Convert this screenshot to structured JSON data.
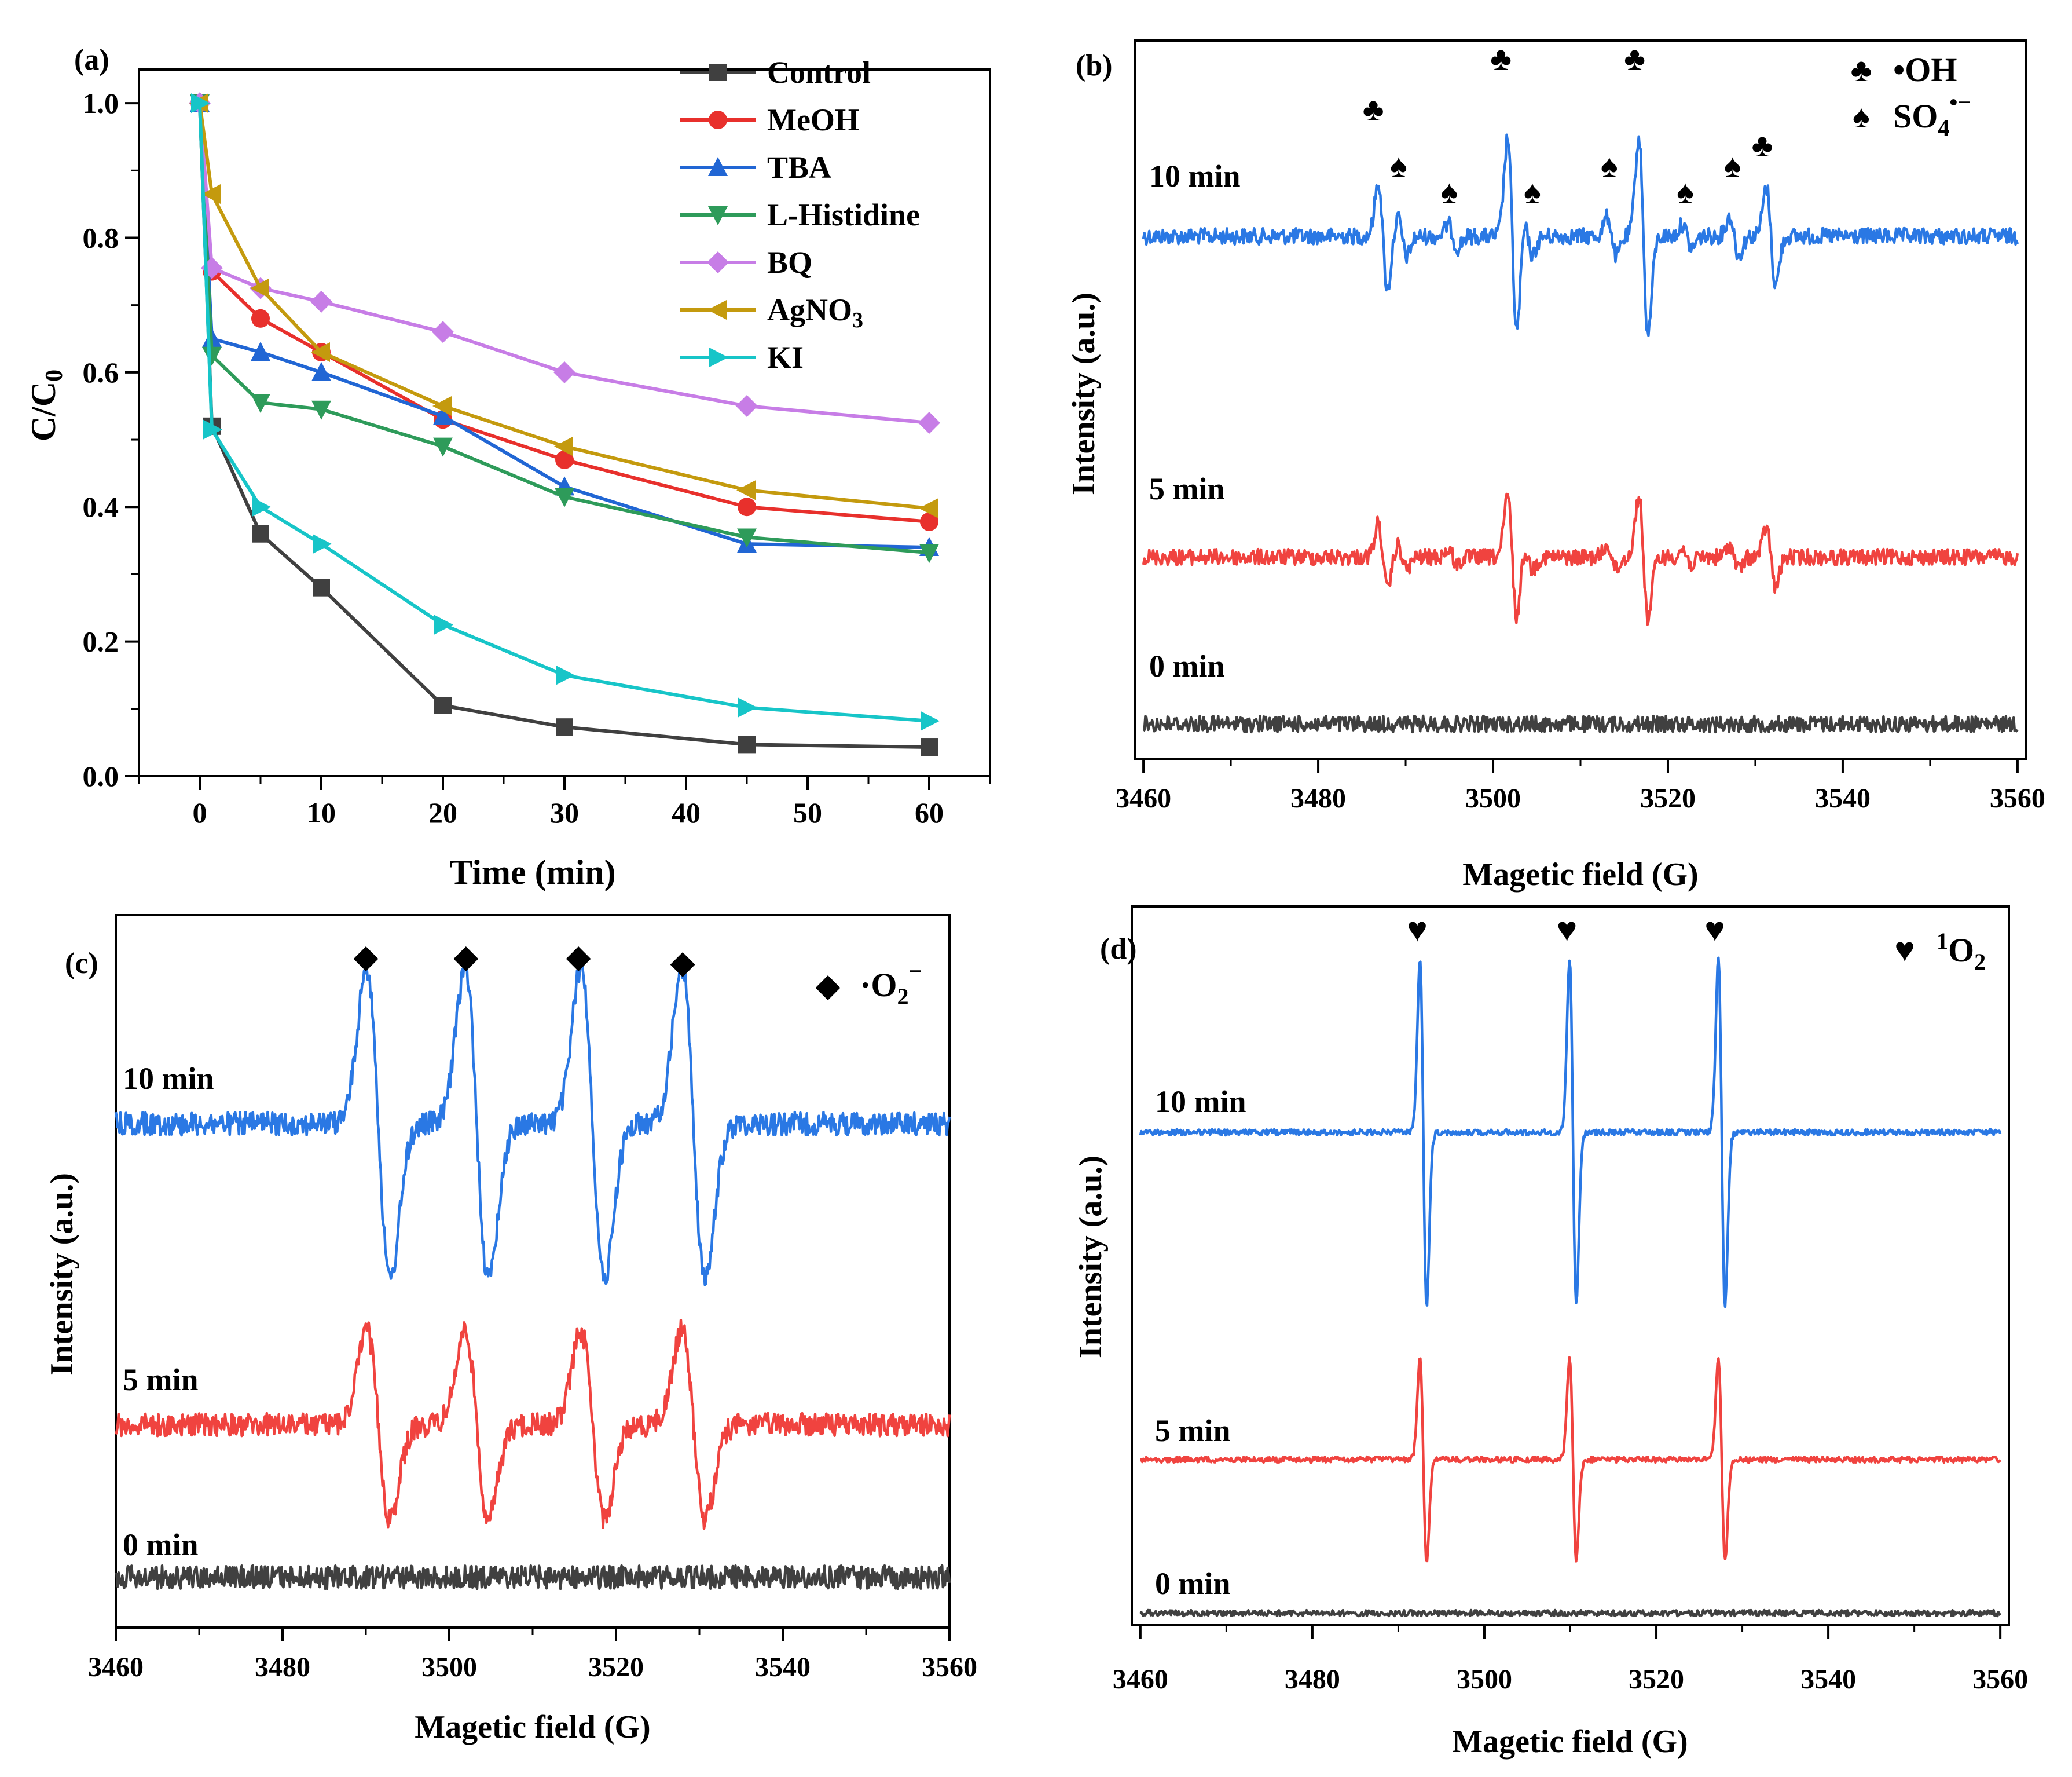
{
  "panel_a": {
    "label": "(a)",
    "chart_data": {
      "type": "line",
      "xlabel": "Time (min)",
      "ylabel_main": "C/C",
      "ylabel_sub": "0",
      "xlim": [
        -5,
        65
      ],
      "ylim": [
        0,
        1.05
      ],
      "x_ticks": [
        "0",
        "10",
        "20",
        "30",
        "40",
        "50",
        "60"
      ],
      "x_tick_values": [
        0,
        10,
        20,
        30,
        40,
        50,
        60
      ],
      "y_ticks": [
        "0.0",
        "0.2",
        "0.4",
        "0.6",
        "0.8",
        "1.0"
      ],
      "y_tick_values": [
        0,
        0.2,
        0.4,
        0.6,
        0.8,
        1.0
      ],
      "x": [
        0,
        1,
        5,
        10,
        20,
        30,
        45,
        60
      ],
      "series": [
        {
          "name": "Control",
          "sub": "",
          "color": "#404040",
          "marker": "square",
          "values": [
            1.0,
            0.52,
            0.36,
            0.28,
            0.105,
            0.073,
            0.047,
            0.043
          ]
        },
        {
          "name": "MeOH",
          "sub": "",
          "color": "#e8302c",
          "marker": "circle",
          "values": [
            1.0,
            0.75,
            0.68,
            0.63,
            0.53,
            0.47,
            0.4,
            0.378
          ]
        },
        {
          "name": "TBA",
          "sub": "",
          "color": "#2166d4",
          "marker": "triangle-up",
          "values": [
            1.0,
            0.65,
            0.63,
            0.6,
            0.535,
            0.43,
            0.345,
            0.34
          ]
        },
        {
          "name": "L-Histidine",
          "sub": "",
          "color": "#2e9b5a",
          "marker": "triangle-down",
          "values": [
            1.0,
            0.625,
            0.555,
            0.545,
            0.49,
            0.415,
            0.355,
            0.332
          ]
        },
        {
          "name": "BQ",
          "sub": "",
          "color": "#c77de6",
          "marker": "diamond",
          "values": [
            1.0,
            0.755,
            0.725,
            0.705,
            0.66,
            0.6,
            0.55,
            0.525
          ]
        },
        {
          "name": "AgNO",
          "sub": "3",
          "color": "#c49a0e",
          "marker": "triangle-left",
          "values": [
            1.0,
            0.865,
            0.725,
            0.63,
            0.55,
            0.49,
            0.425,
            0.398
          ]
        },
        {
          "name": "KI",
          "sub": "",
          "color": "#17c5c8",
          "marker": "triangle-right",
          "values": [
            1.0,
            0.515,
            0.4,
            0.345,
            0.225,
            0.15,
            0.102,
            0.082
          ]
        }
      ]
    }
  },
  "panel_b": {
    "label": "(b)",
    "chart_data": {
      "type": "line",
      "xlabel": "Magetic field (G)",
      "ylabel": "Intensity (a.u.)",
      "xlim": [
        3459,
        3561
      ],
      "x_ticks": [
        "3460",
        "3480",
        "3500",
        "3520",
        "3540",
        "3560"
      ],
      "x_tick_values": [
        3460,
        3480,
        3500,
        3520,
        3540,
        3560
      ],
      "spectra": [
        {
          "label": "10 min",
          "color": "#2a78e4",
          "amp": 1.0
        },
        {
          "label": "5 min",
          "color": "#f0433f",
          "amp": 0.62
        },
        {
          "label": "0 min",
          "color": "#404040",
          "amp": 0
        }
      ],
      "lines": [
        {
          "pos": 3487.4,
          "rel": 0.55
        },
        {
          "pos": 3502.2,
          "rel": 1.0
        },
        {
          "pos": 3517.2,
          "rel": 1.0
        },
        {
          "pos": 3531.8,
          "rel": 0.5
        },
        {
          "pos": 3489.6,
          "rel": 0.2
        },
        {
          "pos": 3495.4,
          "rel": 0.12
        },
        {
          "pos": 3504.0,
          "rel": 0.2
        },
        {
          "pos": 3513.6,
          "rel": 0.2
        },
        {
          "pos": 3522.2,
          "rel": 0.12
        },
        {
          "pos": 3527.6,
          "rel": 0.2
        }
      ],
      "markers": [
        {
          "symbol": "♣",
          "color": "#a3195b",
          "positions": [
            3486.3,
            3500.9,
            3516.2,
            3530.8
          ]
        },
        {
          "symbol": "♠",
          "color": "#5a7d1a",
          "positions": [
            3489.2,
            3495.0,
            3504.5,
            3513.3,
            3522.0,
            3527.4
          ]
        }
      ],
      "legend": [
        {
          "symbol": "♣",
          "color": "#a3195b",
          "text": "•OH",
          "sub": "",
          "sup": ""
        },
        {
          "symbol": "♠",
          "color": "#5a7d1a",
          "text": "SO",
          "sub": "4",
          "sup": "•−"
        }
      ]
    }
  },
  "panel_c": {
    "label": "(c)",
    "chart_data": {
      "type": "line",
      "xlabel": "Magetic field (G)",
      "ylabel": "Intensity (a.u.)",
      "xlim": [
        3460,
        3560
      ],
      "x_ticks": [
        "3460",
        "3480",
        "3500",
        "3520",
        "3540",
        "3560"
      ],
      "x_tick_values": [
        3460,
        3480,
        3500,
        3520,
        3540,
        3560
      ],
      "spectra": [
        {
          "label": "10 min",
          "color": "#2a78e4",
          "amp": 1.0
        },
        {
          "label": "5 min",
          "color": "#f0433f",
          "amp": 0.6
        },
        {
          "label": "0 min",
          "color": "#404040",
          "amp": 0
        }
      ],
      "lines": [
        {
          "pos": 3491.5,
          "rel": 1.0
        },
        {
          "pos": 3503.3,
          "rel": 1.0
        },
        {
          "pos": 3517.2,
          "rel": 1.0
        },
        {
          "pos": 3529.3,
          "rel": 1.0
        }
      ],
      "markers": [
        {
          "symbol": "◆",
          "color": "#2a78e4",
          "positions": [
            3490.0,
            3502.0,
            3515.5,
            3528.0
          ]
        }
      ],
      "legend": [
        {
          "symbol": "◆",
          "color": "#2a78e4",
          "text": "·O",
          "sub": "2",
          "sup": "−"
        }
      ]
    }
  },
  "panel_d": {
    "label": "(d)",
    "chart_data": {
      "type": "line",
      "xlabel": "Magetic field (G)",
      "ylabel": "Intensity (a.u.)",
      "xlim": [
        3459,
        3561
      ],
      "x_ticks": [
        "3460",
        "3480",
        "3500",
        "3520",
        "3540",
        "3560"
      ],
      "x_tick_values": [
        3460,
        3480,
        3500,
        3520,
        3540,
        3560
      ],
      "spectra": [
        {
          "label": "10 min",
          "color": "#2a78e4",
          "amp": 1.0
        },
        {
          "label": "5 min",
          "color": "#f0433f",
          "amp": 0.58
        },
        {
          "label": "0 min",
          "color": "#404040",
          "amp": 0
        }
      ],
      "lines": [
        {
          "pos": 3492.9,
          "rel": 1.0
        },
        {
          "pos": 3510.3,
          "rel": 1.0
        },
        {
          "pos": 3527.6,
          "rel": 1.0
        }
      ],
      "markers": [
        {
          "symbol": "♥",
          "color": "#6b1f8a",
          "positions": [
            3492.2,
            3509.6,
            3526.8
          ]
        }
      ],
      "legend": [
        {
          "symbol": "♥",
          "color": "#6b1f8a",
          "text": "O",
          "sub": "2",
          "sup": "1",
          "sup_before": true
        }
      ]
    }
  }
}
